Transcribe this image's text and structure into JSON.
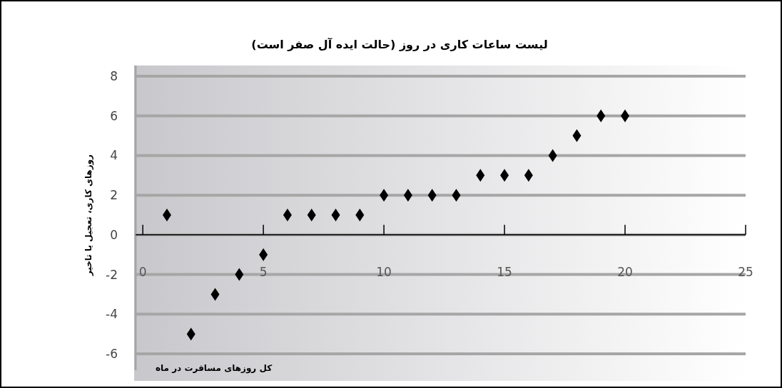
{
  "chart_data": {
    "type": "scatter",
    "title": "لیست ساعات کاری در روز (حالت ایده آل صفر است)",
    "xlabel": "کل روزهای مسافرت در ماه",
    "ylabel": "روزهای کاری، تعجیل یا تاخیر",
    "x": [
      1,
      2,
      3,
      4,
      5,
      6,
      7,
      8,
      9,
      10,
      11,
      12,
      13,
      14,
      15,
      16,
      17,
      18,
      19,
      20
    ],
    "series": [
      {
        "color": "#000000",
        "values": [
          1,
          -5,
          -3,
          -2,
          -1,
          1,
          1,
          1,
          1,
          2,
          2,
          2,
          2,
          3,
          3,
          3,
          4,
          5,
          6,
          6
        ]
      }
    ],
    "xlim": [
      -0.3,
      25
    ],
    "xticks": [
      0,
      5,
      10,
      15,
      20,
      25
    ],
    "ylim": [
      -6,
      8
    ],
    "yticks": [
      -6,
      -4,
      -2,
      0,
      2,
      4,
      6,
      8
    ],
    "grid": "y",
    "marker": "diamond"
  }
}
